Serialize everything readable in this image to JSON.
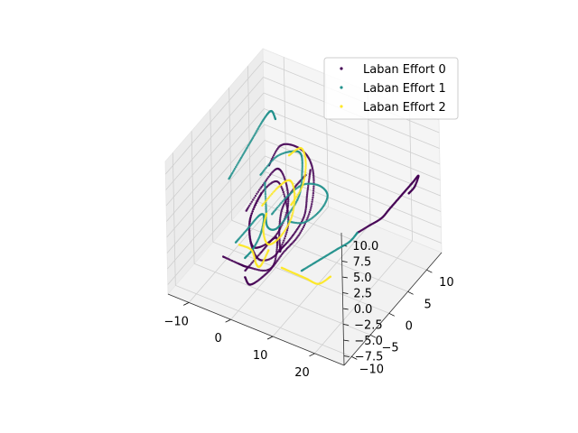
{
  "chart_data": {
    "type": "scatter",
    "projection": "3d",
    "title": "",
    "xlabel": "",
    "ylabel": "",
    "zlabel": "",
    "grid": true,
    "legend_position": "top-right",
    "xlim": [
      -15,
      27
    ],
    "ylim": [
      -12,
      14
    ],
    "zlim": [
      -9,
      12
    ],
    "x_ticks": [
      -10,
      0,
      10,
      20
    ],
    "x_tick_labels": [
      "−10",
      "0",
      "10",
      "20"
    ],
    "y_ticks": [
      -10,
      -5,
      0,
      5,
      10
    ],
    "y_tick_labels": [
      "−10",
      "−5",
      "0",
      "5",
      "10"
    ],
    "z_ticks": [
      -7.5,
      -5.0,
      -2.5,
      0.0,
      2.5,
      5.0,
      7.5,
      10.0
    ],
    "z_tick_labels": [
      "−7.5",
      "−5.0",
      "−2.5",
      "0.0",
      "2.5",
      "5.0",
      "7.5",
      "10.0"
    ],
    "series": [
      {
        "name": "Laban Effort 0",
        "color": "#440154",
        "marker": "point",
        "trajectories": [
          [
            [
              -5,
              -2,
              0
            ],
            [
              -3,
              0,
              3
            ],
            [
              -1,
              2,
              5
            ],
            [
              2,
              1,
              4
            ],
            [
              4,
              -1,
              2
            ],
            [
              3,
              -3,
              -1
            ],
            [
              0,
              -4,
              -3
            ],
            [
              -3,
              -3,
              -4
            ],
            [
              -5,
              -1,
              -2
            ],
            [
              -4,
              1,
              1
            ],
            [
              -2,
              3,
              2
            ],
            [
              1,
              2,
              0
            ],
            [
              3,
              0,
              -2
            ],
            [
              2,
              -2,
              -5
            ],
            [
              -1,
              -3,
              -6
            ],
            [
              -4,
              -2,
              -5
            ],
            [
              -6,
              0,
              -3
            ],
            [
              -5,
              2,
              0
            ]
          ],
          [
            [
              -8,
              -5,
              -6
            ],
            [
              -6,
              -3,
              -8
            ],
            [
              -3,
              -4,
              -7
            ],
            [
              0,
              -2,
              -8
            ],
            [
              2,
              0,
              -6
            ],
            [
              4,
              2,
              -4
            ],
            [
              5,
              4,
              -1
            ],
            [
              4,
              6,
              2
            ],
            [
              2,
              7,
              4
            ],
            [
              0,
              6,
              6
            ],
            [
              -2,
              4,
              7
            ],
            [
              -3,
              2,
              5
            ]
          ],
          [
            [
              6,
              3,
              6
            ],
            [
              7,
              1,
              4
            ],
            [
              8,
              -1,
              2
            ],
            [
              7,
              -3,
              0
            ],
            [
              5,
              -4,
              -2
            ],
            [
              3,
              -2,
              -4
            ],
            [
              1,
              0,
              -3
            ],
            [
              0,
              2,
              -1
            ],
            [
              1,
              4,
              1
            ],
            [
              3,
              5,
              3
            ]
          ],
          [
            [
              0,
              -8,
              -4
            ],
            [
              2,
              -6,
              -2
            ],
            [
              4,
              -5,
              0
            ],
            [
              6,
              -6,
              1
            ],
            [
              7,
              -8,
              -1
            ],
            [
              5,
              -9,
              -3
            ],
            [
              2,
              -9,
              -5
            ],
            [
              -1,
              -7,
              -6
            ]
          ],
          [
            [
              17,
              3,
              -1
            ],
            [
              19,
              4,
              0
            ],
            [
              21,
              5,
              1
            ],
            [
              22,
              6,
              2
            ],
            [
              23,
              7,
              3
            ],
            [
              24,
              8,
              4
            ],
            [
              25,
              9,
              5
            ],
            [
              25.5,
              10,
              5.5
            ],
            [
              25,
              9.5,
              4
            ],
            [
              24,
              9,
              3
            ]
          ]
        ]
      },
      {
        "name": "Laban Effort 1",
        "color": "#21918c",
        "marker": "point",
        "trajectories": [
          [
            [
              -6,
              3,
              2
            ],
            [
              -4,
              5,
              4
            ],
            [
              -1,
              6,
              5
            ],
            [
              2,
              5,
              6
            ],
            [
              4,
              3,
              5
            ],
            [
              5,
              1,
              3
            ],
            [
              4,
              -1,
              1
            ],
            [
              2,
              -2,
              -1
            ],
            [
              -1,
              -1,
              -2
            ],
            [
              -3,
              1,
              -1
            ],
            [
              -5,
              3,
              1
            ]
          ],
          [
            [
              -9,
              -2,
              4
            ],
            [
              -8,
              0,
              6
            ],
            [
              -7,
              2,
              8
            ],
            [
              -6,
              4,
              10
            ],
            [
              -5,
              5,
              11
            ],
            [
              -4,
              5,
              10
            ]
          ],
          [
            [
              3,
              -4,
              3
            ],
            [
              5,
              -2,
              5
            ],
            [
              7,
              0,
              6
            ],
            [
              9,
              2,
              5
            ],
            [
              10,
              3,
              3
            ],
            [
              9,
              2,
              1
            ],
            [
              7,
              0,
              0
            ],
            [
              5,
              -2,
              1
            ]
          ],
          [
            [
              -4,
              -6,
              -2
            ],
            [
              -2,
              -5,
              0
            ],
            [
              0,
              -4,
              2
            ],
            [
              2,
              -5,
              3
            ],
            [
              3,
              -7,
              2
            ],
            [
              2,
              -8,
              0
            ],
            [
              0,
              -8,
              -2
            ]
          ],
          [
            [
              8,
              -2,
              -6
            ],
            [
              10,
              -1,
              -5
            ],
            [
              12,
              0,
              -4
            ],
            [
              14,
              1,
              -3
            ],
            [
              16,
              2,
              -2
            ],
            [
              17,
              3,
              -1
            ]
          ]
        ]
      },
      {
        "name": "Laban Effort 2",
        "color": "#fde725",
        "marker": "point",
        "trajectories": [
          [
            [
              -3,
              0,
              0
            ],
            [
              -1,
              2,
              2
            ],
            [
              1,
              3,
              3
            ],
            [
              3,
              2,
              2
            ],
            [
              4,
              0,
              0
            ],
            [
              3,
              -2,
              -2
            ],
            [
              1,
              -3,
              -3
            ],
            [
              -1,
              -2,
              -2
            ],
            [
              -2,
              0,
              -1
            ]
          ],
          [
            [
              0,
              4,
              6
            ],
            [
              2,
              5,
              7
            ],
            [
              4,
              4,
              6
            ],
            [
              5,
              2,
              4
            ],
            [
              4,
              0,
              2
            ]
          ],
          [
            [
              -5,
              -4,
              -4
            ],
            [
              -3,
              -3,
              -5
            ],
            [
              -1,
              -4,
              -6
            ],
            [
              1,
              -5,
              -5
            ],
            [
              2,
              -4,
              -3
            ]
          ],
          [
            [
              6,
              -5,
              -4
            ],
            [
              8,
              -4,
              -5
            ],
            [
              10,
              -3,
              -6
            ],
            [
              12,
              -2,
              -7
            ],
            [
              14,
              -1,
              -6
            ]
          ]
        ]
      }
    ]
  }
}
